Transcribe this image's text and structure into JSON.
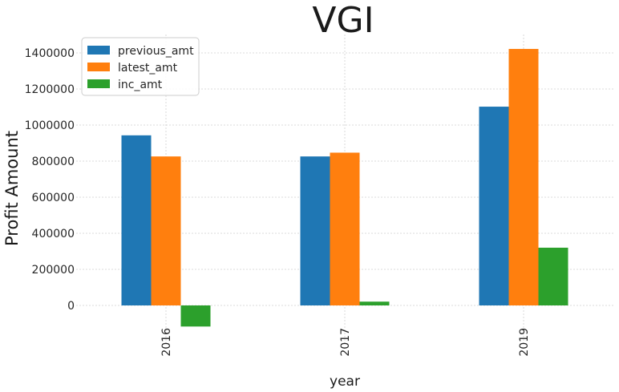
{
  "chart_data": {
    "type": "bar",
    "title": "VGI",
    "xlabel": "year",
    "ylabel": "Profit Amount",
    "categories": [
      "2016",
      "2017",
      "2019"
    ],
    "series": [
      {
        "name": "previous_amt",
        "color": "#1f77b4",
        "values": [
          943000,
          826000,
          1102000
        ]
      },
      {
        "name": "latest_amt",
        "color": "#ff7f0e",
        "values": [
          826000,
          847000,
          1422000
        ]
      },
      {
        "name": "inc_amt",
        "color": "#2ca02c",
        "values": [
          -117000,
          21000,
          320000
        ]
      }
    ],
    "yticks": [
      0,
      200000,
      400000,
      600000,
      800000,
      1000000,
      1200000,
      1400000
    ],
    "ytick_labels": [
      "0",
      "200000",
      "400000",
      "600000",
      "800000",
      "1000000",
      "1200000",
      "1400000"
    ],
    "ylim": [
      -120000,
      1500000
    ],
    "grid": true,
    "legend_position": "top-left",
    "xtick_rotation": "vertical"
  }
}
